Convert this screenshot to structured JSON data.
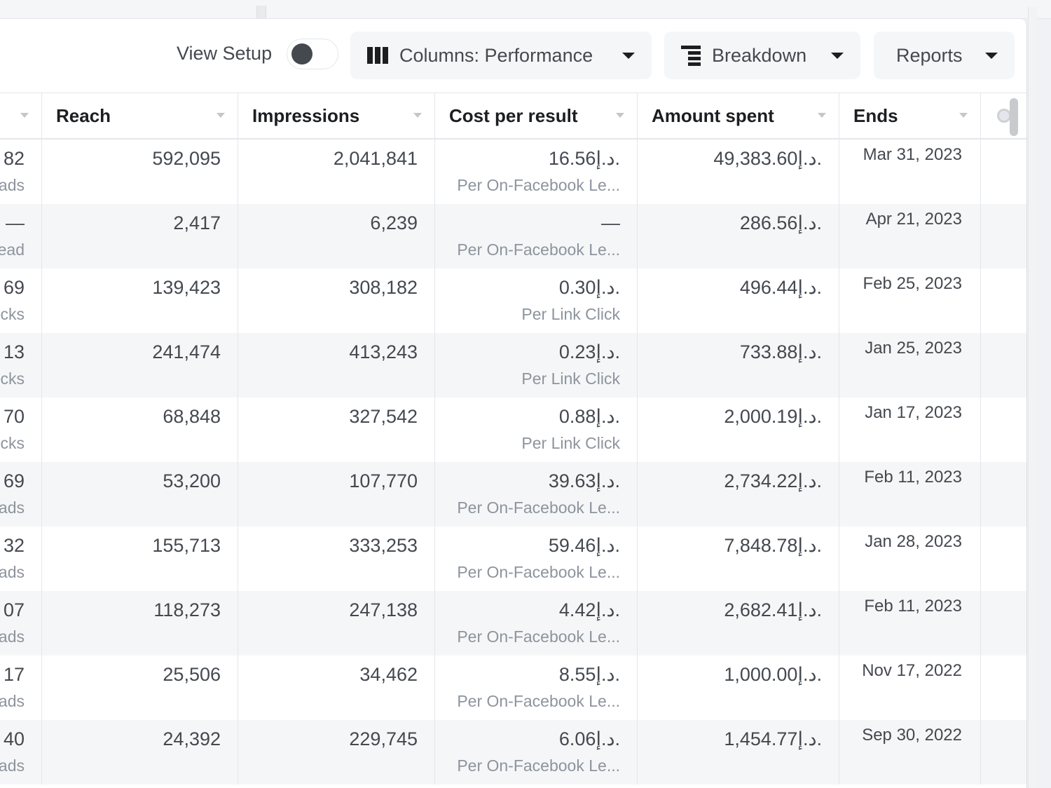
{
  "toolbar": {
    "view_setup_label": "View Setup",
    "view_setup_on": false,
    "columns_label": "Columns: Performance",
    "breakdown_label": "Breakdown",
    "reports_label": "Reports"
  },
  "table": {
    "columns": [
      {
        "key": "results",
        "label": ""
      },
      {
        "key": "reach",
        "label": "Reach"
      },
      {
        "key": "impressions",
        "label": "Impressions"
      },
      {
        "key": "cost_per_result",
        "label": "Cost per result"
      },
      {
        "key": "amount_spent",
        "label": "Amount spent"
      },
      {
        "key": "ends",
        "label": "Ends"
      }
    ],
    "rows": [
      {
        "results": "82",
        "results_sub": "ads",
        "reach": "592,095",
        "impressions": "2,041,841",
        "cost_per_result": "16.56د.إ.",
        "cost_sub": "Per On-Facebook Le...",
        "amount_spent": "49,383.60د.إ.",
        "ends": "Mar 31, 2023"
      },
      {
        "results": "—",
        "results_sub": "ead",
        "reach": "2,417",
        "impressions": "6,239",
        "cost_per_result": "—",
        "cost_sub": "Per On-Facebook Le...",
        "amount_spent": "286.56د.إ.",
        "ends": "Apr 21, 2023"
      },
      {
        "results": "69",
        "results_sub": "cks",
        "reach": "139,423",
        "impressions": "308,182",
        "cost_per_result": "0.30د.إ.",
        "cost_sub": "Per Link Click",
        "amount_spent": "496.44د.إ.",
        "ends": "Feb 25, 2023"
      },
      {
        "results": "13",
        "results_sub": "cks",
        "reach": "241,474",
        "impressions": "413,243",
        "cost_per_result": "0.23د.إ.",
        "cost_sub": "Per Link Click",
        "amount_spent": "733.88د.إ.",
        "ends": "Jan 25, 2023"
      },
      {
        "results": "70",
        "results_sub": "cks",
        "reach": "68,848",
        "impressions": "327,542",
        "cost_per_result": "0.88د.إ.",
        "cost_sub": "Per Link Click",
        "amount_spent": "2,000.19د.إ.",
        "ends": "Jan 17, 2023"
      },
      {
        "results": "69",
        "results_sub": "ads",
        "reach": "53,200",
        "impressions": "107,770",
        "cost_per_result": "39.63د.إ.",
        "cost_sub": "Per On-Facebook Le...",
        "amount_spent": "2,734.22د.إ.",
        "ends": "Feb 11, 2023"
      },
      {
        "results": "32",
        "results_sub": "ads",
        "reach": "155,713",
        "impressions": "333,253",
        "cost_per_result": "59.46د.إ.",
        "cost_sub": "Per On-Facebook Le...",
        "amount_spent": "7,848.78د.إ.",
        "ends": "Jan 28, 2023"
      },
      {
        "results": "07",
        "results_sub": "ads",
        "reach": "118,273",
        "impressions": "247,138",
        "cost_per_result": "4.42د.إ.",
        "cost_sub": "Per On-Facebook Le...",
        "amount_spent": "2,682.41د.إ.",
        "ends": "Feb 11, 2023"
      },
      {
        "results": "17",
        "results_sub": "ads",
        "reach": "25,506",
        "impressions": "34,462",
        "cost_per_result": "8.55د.إ.",
        "cost_sub": "Per On-Facebook Le...",
        "amount_spent": "1,000.00د.إ.",
        "ends": "Nov 17, 2022"
      },
      {
        "results": "40",
        "results_sub": "ads",
        "reach": "24,392",
        "impressions": "229,745",
        "cost_per_result": "6.06د.إ.",
        "cost_sub": "Per On-Facebook Le...",
        "amount_spent": "1,454.77د.إ.",
        "ends": "Sep 30, 2022"
      }
    ]
  }
}
